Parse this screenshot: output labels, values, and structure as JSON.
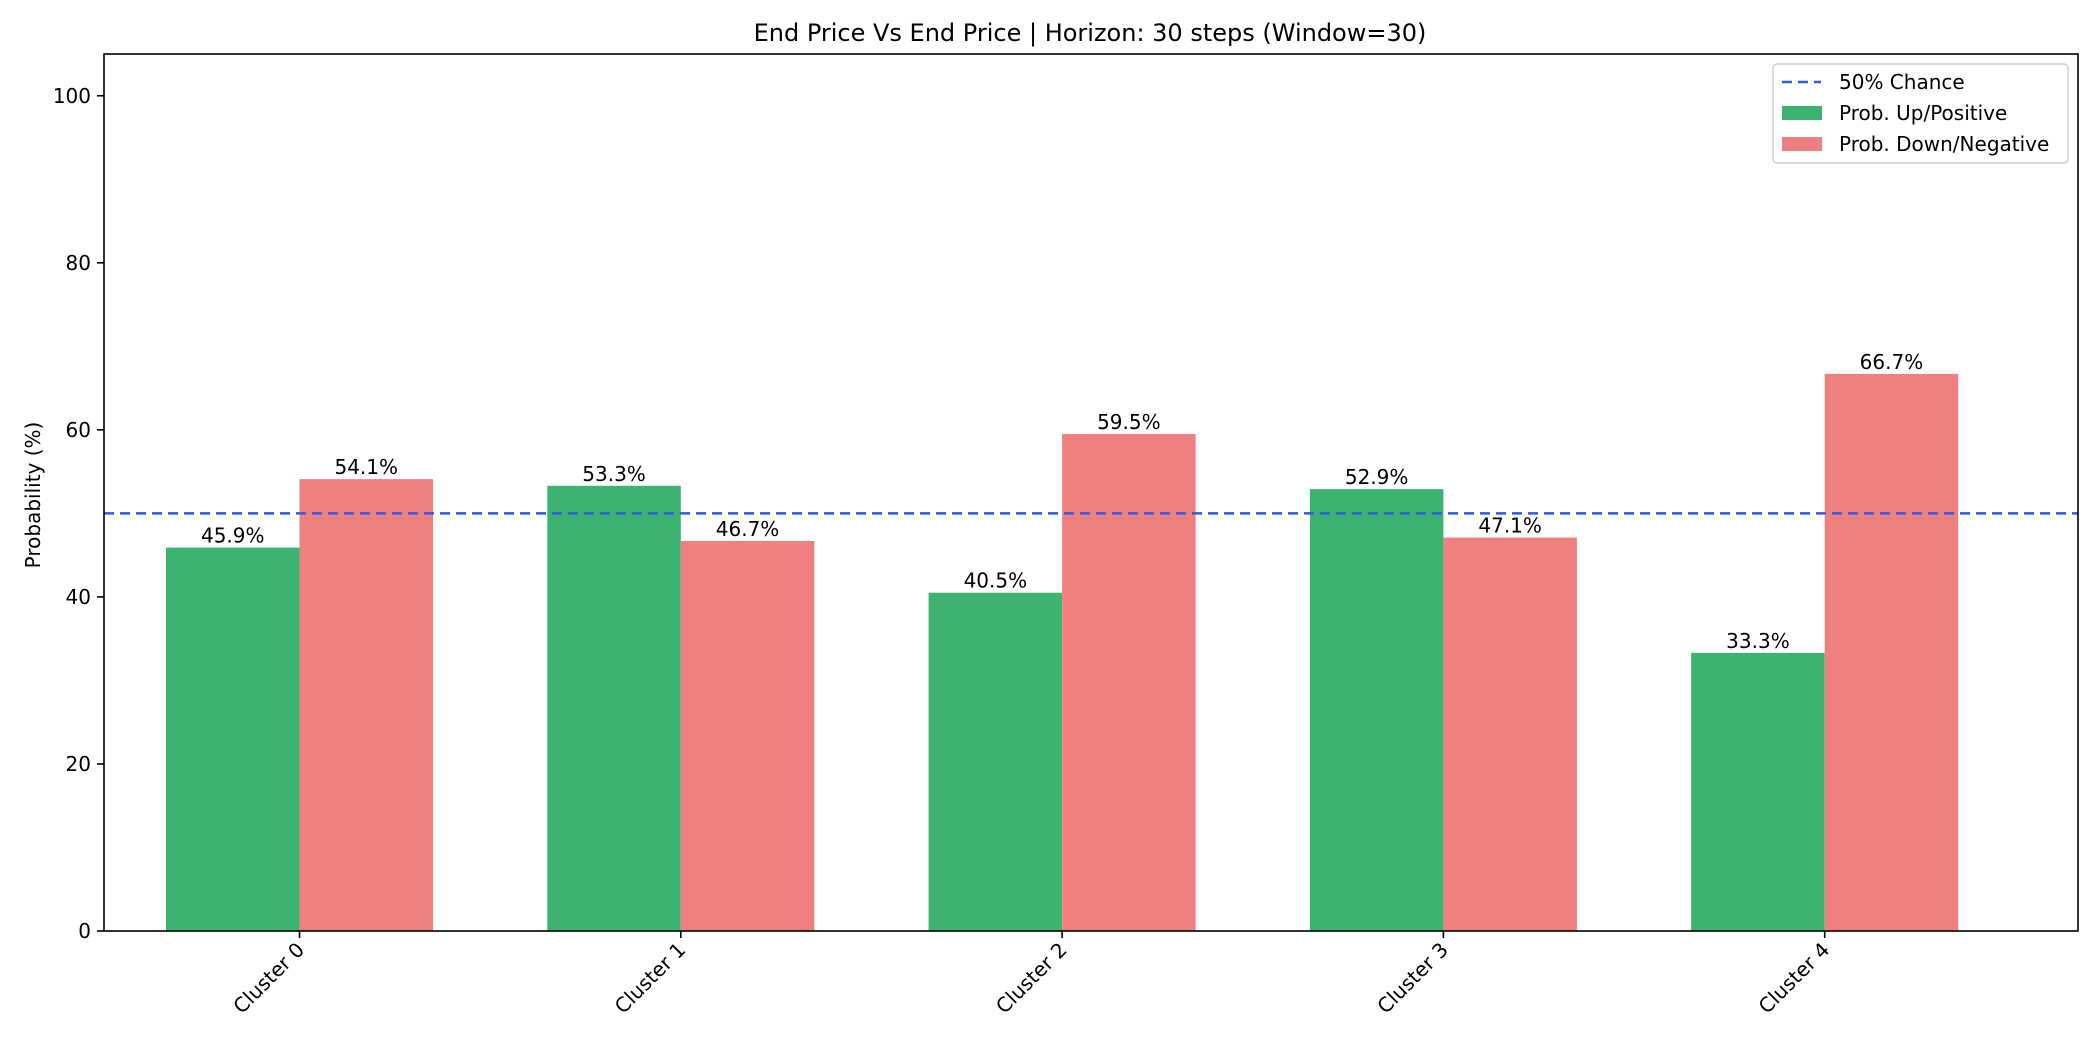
{
  "chart_data": {
    "type": "bar",
    "title": "End Price Vs End Price | Horizon: 30 steps (Window=30)",
    "xlabel": "",
    "ylabel": "Probability (%)",
    "ylim": [
      0,
      105
    ],
    "yticks": [
      0,
      20,
      40,
      60,
      80,
      100
    ],
    "categories": [
      "Cluster 0",
      "Cluster 1",
      "Cluster 2",
      "Cluster 3",
      "Cluster 4"
    ],
    "series": [
      {
        "name": "Prob. Up/Positive",
        "color": "#3cb371",
        "values": [
          45.9,
          53.3,
          40.5,
          52.9,
          33.3
        ]
      },
      {
        "name": "Prob. Down/Negative",
        "color": "#f08080",
        "values": [
          54.1,
          46.7,
          59.5,
          47.1,
          66.7
        ]
      }
    ],
    "data_label_format": "%",
    "reference_line": {
      "name": "50% Chance",
      "value": 50,
      "color": "#2d5be3",
      "style": "dashed"
    },
    "legend_position": "top-right",
    "grid": false
  }
}
